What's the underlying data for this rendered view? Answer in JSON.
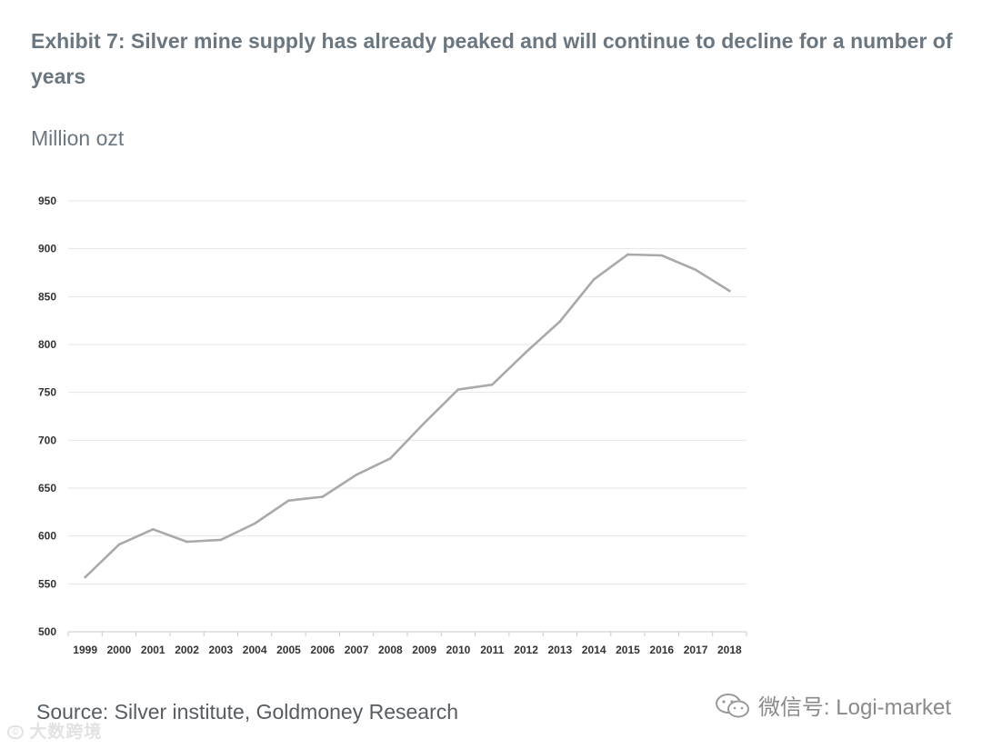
{
  "title": "Exhibit 7: Silver mine supply has already peaked and will continue to decline for a number of years",
  "unit_label": "Million ozt",
  "source": "Source: Silver institute, Goldmoney Research",
  "watermark_left": "大数跨境",
  "watermark_right": "微信号: Logi-market",
  "colors": {
    "line": "#a9a9a9",
    "grid": "#e6e6e6",
    "axis": "#c8c8c8",
    "title": "#6b7780"
  },
  "chart_data": {
    "type": "line",
    "title": "Exhibit 7: Silver mine supply has already peaked and will continue to decline for a number of years",
    "xlabel": "",
    "ylabel": "Million ozt",
    "ylim": [
      500,
      950
    ],
    "yticks": [
      500,
      550,
      600,
      650,
      700,
      750,
      800,
      850,
      900,
      950
    ],
    "grid": true,
    "categories": [
      "1999",
      "2000",
      "2001",
      "2002",
      "2003",
      "2004",
      "2005",
      "2006",
      "2007",
      "2008",
      "2009",
      "2010",
      "2011",
      "2012",
      "2013",
      "2014",
      "2015",
      "2016",
      "2017",
      "2018"
    ],
    "series": [
      {
        "name": "Silver mine supply",
        "values": [
          557,
          591,
          607,
          594,
          596,
          613,
          637,
          641,
          664,
          681,
          718,
          753,
          758,
          792,
          824,
          868,
          894,
          893,
          878,
          856
        ]
      }
    ]
  }
}
